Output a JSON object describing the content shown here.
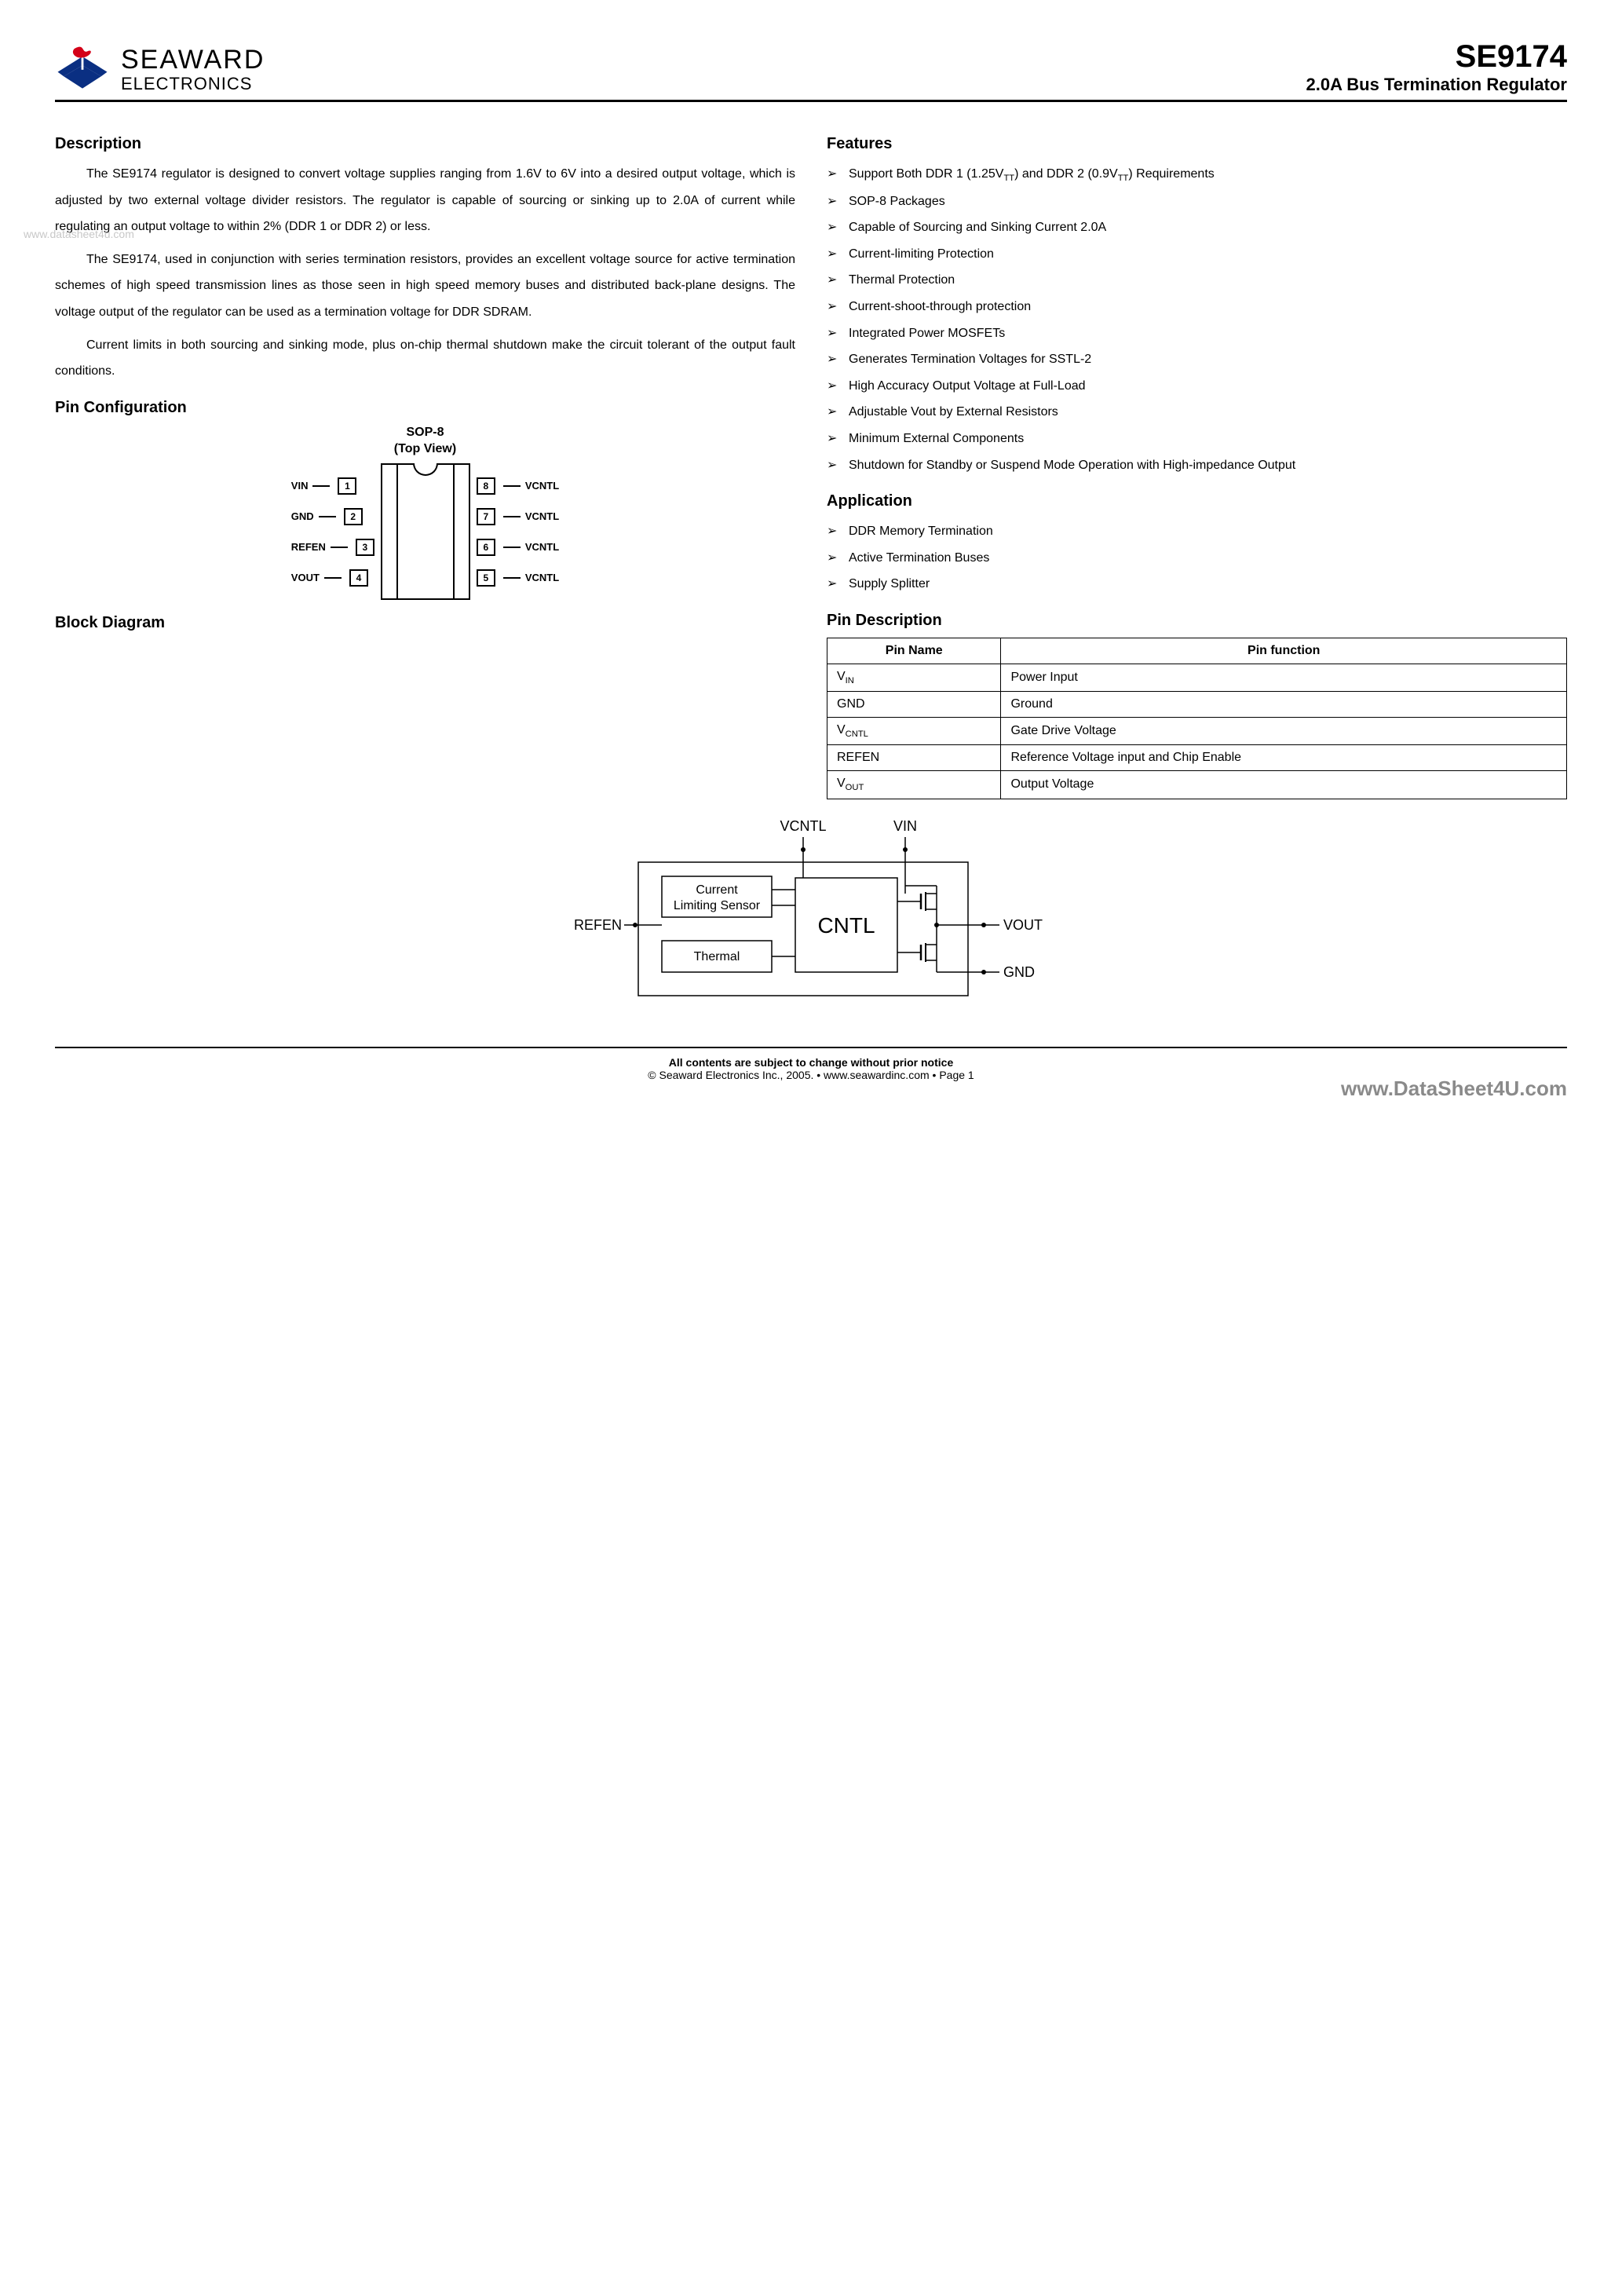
{
  "header": {
    "company_name": "SEAWARD",
    "company_sub": "ELECTRONICS",
    "part_number": "SE9174",
    "subtitle": "2.0A Bus Termination Regulator",
    "logo_colors": {
      "red": "#d40018",
      "blue": "#0a2f82"
    }
  },
  "watermarks": {
    "left": "www.datasheet4u.com",
    "right": "www.DataSheet4U.com"
  },
  "description": {
    "heading": "Description",
    "paragraphs": [
      "The SE9174 regulator is designed to convert voltage supplies ranging from 1.6V to 6V into a desired output voltage, which is adjusted by two external voltage divider resistors. The regulator is capable of sourcing or sinking up to 2.0A of current while regulating an output voltage to within 2% (DDR 1 or DDR 2) or less.",
      "The SE9174, used in conjunction with series termination resistors, provides an excellent voltage source for active termination schemes of high speed transmission lines as those seen in high speed memory buses and distributed back-plane designs. The voltage output of the regulator can be used as a termination voltage for DDR SDRAM.",
      "Current limits in both sourcing and sinking mode, plus on-chip thermal shutdown make the circuit tolerant of the output fault conditions."
    ]
  },
  "features": {
    "heading": "Features",
    "items_html": [
      "Support Both DDR 1 (1.25V<sub>TT</sub>) and DDR 2 (0.9V<sub>TT</sub>) Requirements",
      "SOP-8 Packages",
      "Capable of Sourcing and Sinking Current 2.0A",
      "Current-limiting Protection",
      "Thermal Protection",
      "Current-shoot-through protection",
      "Integrated Power MOSFETs",
      "Generates Termination Voltages for SSTL-2",
      "High Accuracy Output Voltage at Full-Load",
      "Adjustable Vout by External Resistors",
      "Minimum External Components",
      "Shutdown for Standby or Suspend Mode Operation with High-impedance Output"
    ]
  },
  "application": {
    "heading": "Application",
    "items": [
      "DDR Memory Termination",
      "Active Termination Buses",
      "Supply Splitter"
    ]
  },
  "pin_config": {
    "heading": "Pin Configuration",
    "pkg_line1": "SOP-8",
    "pkg_line2": "(Top View)",
    "left_pins": [
      {
        "n": "1",
        "label": "VIN"
      },
      {
        "n": "2",
        "label": "GND"
      },
      {
        "n": "3",
        "label": "REFEN"
      },
      {
        "n": "4",
        "label": "VOUT"
      }
    ],
    "right_pins": [
      {
        "n": "8",
        "label": "VCNTL"
      },
      {
        "n": "7",
        "label": "VCNTL"
      },
      {
        "n": "6",
        "label": "VCNTL"
      },
      {
        "n": "5",
        "label": "VCNTL"
      }
    ]
  },
  "pin_description": {
    "heading": "Pin Description",
    "col1": "Pin Name",
    "col2": "Pin function",
    "rows": [
      {
        "name_html": "V<sub>IN</sub>",
        "func": "Power Input"
      },
      {
        "name_html": "GND",
        "func": "Ground"
      },
      {
        "name_html": "V<sub>CNTL</sub>",
        "func": "Gate Drive Voltage"
      },
      {
        "name_html": "REFEN",
        "func": "Reference Voltage input and Chip Enable"
      },
      {
        "name_html": "V<sub>OUT</sub>",
        "func": "Output Voltage"
      }
    ]
  },
  "block_diagram": {
    "heading": "Block Diagram",
    "labels": {
      "vcntl": "VCNTL",
      "vin": "VIN",
      "refen": "REFEN",
      "vout": "VOUT",
      "gnd": "GND",
      "cntl": "CNTL",
      "cls": "Current Limiting Sensor",
      "thermal": "Thermal"
    }
  },
  "footer": {
    "line1": "All contents are subject to change without prior notice",
    "line2": "© Seaward Electronics Inc., 2005. • www.seawardinc.com • Page 1"
  }
}
